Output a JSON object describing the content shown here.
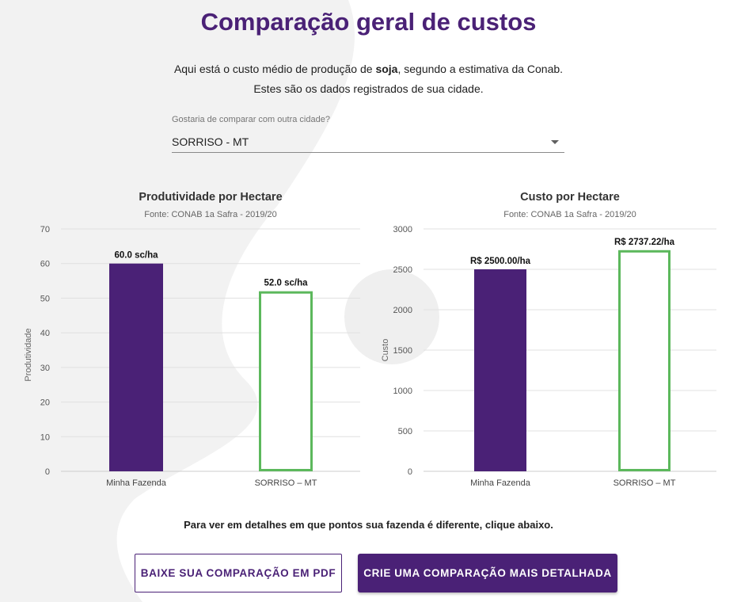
{
  "title": "Comparação geral de custos",
  "intro": {
    "line1_before": "Aqui está o custo médio de produção de ",
    "line1_bold": "soja",
    "line1_after": ", segundo a estimativa da Conab.",
    "line2": "Estes são os dados registrados de sua cidade."
  },
  "city_select": {
    "label": "Gostaria de comparar com outra cidade?",
    "value": "SORRISO - MT"
  },
  "colors": {
    "primary": "#4a2176",
    "city_outline": "#5cb85c",
    "gridline": "#e0e0e0",
    "background_shape": "#f2f2f2"
  },
  "chart_data": [
    {
      "type": "bar",
      "title": "Produtividade por Hectare",
      "subtitle": "Fonte: CONAB 1a Safra - 2019/20",
      "ylabel": "Produtividade",
      "xlabel": "",
      "ylim": [
        0,
        70
      ],
      "yticks": [
        0,
        10,
        20,
        30,
        40,
        50,
        60,
        70
      ],
      "categories": [
        "Minha Fazenda",
        "SORRISO – MT"
      ],
      "values": [
        60.0,
        52.0
      ],
      "data_labels": [
        "60.0 sc/ha",
        "52.0 sc/ha"
      ],
      "bar_styles": [
        "filled",
        "outline"
      ],
      "grid": true,
      "legend": "none"
    },
    {
      "type": "bar",
      "title": "Custo por Hectare",
      "subtitle": "Fonte: CONAB 1a Safra - 2019/20",
      "ylabel": "Custo",
      "xlabel": "",
      "ylim": [
        0,
        3000
      ],
      "yticks": [
        0,
        500,
        1000,
        1500,
        2000,
        2500,
        3000
      ],
      "categories": [
        "Minha Fazenda",
        "SORRISO – MT"
      ],
      "values": [
        2500.0,
        2737.22
      ],
      "data_labels": [
        "R$ 2500.00/ha",
        "R$ 2737.22/ha"
      ],
      "bar_styles": [
        "filled",
        "outline"
      ],
      "grid": true,
      "legend": "none"
    }
  ],
  "note": "Para ver em detalhes em que pontos sua fazenda é diferente, clique abaixo.",
  "buttons": {
    "pdf": "BAIXE SUA COMPARAÇÃO EM PDF",
    "detailed": "CRIE UMA COMPARAÇÃO MAIS DETALHADA"
  }
}
